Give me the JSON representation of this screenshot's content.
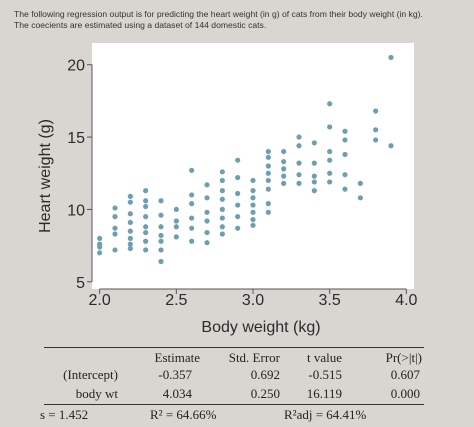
{
  "intro": {
    "line1": "The following regression output is for predicting the heart weight (in g) of cats from their body weight (in kg).",
    "line2": "The coecients are estimated using a dataset of 144 domestic cats."
  },
  "colors": {
    "point": "#6e9fb0",
    "axis": "#555555",
    "text": "#2b2b2b"
  },
  "chart_data": {
    "type": "scatter",
    "xlabel": "Body weight (kg)",
    "ylabel": "Heart weight (g)",
    "xlim": [
      1.95,
      4.05
    ],
    "ylim": [
      4.5,
      21.5
    ],
    "xticks": [
      2.0,
      2.5,
      3.0,
      3.5,
      4.0
    ],
    "xtick_labels": [
      "2.0",
      "2.5",
      "3.0",
      "3.5",
      "4.0"
    ],
    "yticks": [
      5,
      10,
      15,
      20
    ],
    "ytick_labels": [
      "5",
      "10",
      "15",
      "20"
    ],
    "grid": false,
    "points": [
      [
        2.0,
        7.0
      ],
      [
        2.0,
        7.4
      ],
      [
        2.0,
        7.6
      ],
      [
        2.0,
        8.0
      ],
      [
        2.1,
        7.2
      ],
      [
        2.1,
        8.3
      ],
      [
        2.1,
        8.7
      ],
      [
        2.1,
        9.5
      ],
      [
        2.1,
        10.1
      ],
      [
        2.2,
        7.3
      ],
      [
        2.2,
        7.6
      ],
      [
        2.2,
        8.0
      ],
      [
        2.2,
        8.5
      ],
      [
        2.2,
        9.1
      ],
      [
        2.2,
        9.7
      ],
      [
        2.2,
        10.5
      ],
      [
        2.2,
        10.9
      ],
      [
        2.3,
        7.2
      ],
      [
        2.3,
        7.8
      ],
      [
        2.3,
        8.4
      ],
      [
        2.3,
        8.8
      ],
      [
        2.3,
        9.5
      ],
      [
        2.3,
        10.2
      ],
      [
        2.3,
        10.6
      ],
      [
        2.3,
        11.3
      ],
      [
        2.4,
        6.4
      ],
      [
        2.4,
        7.2
      ],
      [
        2.4,
        7.8
      ],
      [
        2.4,
        8.2
      ],
      [
        2.4,
        8.8
      ],
      [
        2.4,
        9.6
      ],
      [
        2.4,
        10.6
      ],
      [
        2.5,
        8.1
      ],
      [
        2.5,
        8.8
      ],
      [
        2.5,
        9.2
      ],
      [
        2.5,
        10.0
      ],
      [
        2.6,
        7.8
      ],
      [
        2.6,
        8.7
      ],
      [
        2.6,
        9.4
      ],
      [
        2.6,
        10.4
      ],
      [
        2.6,
        11.0
      ],
      [
        2.6,
        12.7
      ],
      [
        2.7,
        7.7
      ],
      [
        2.7,
        8.4
      ],
      [
        2.7,
        9.2
      ],
      [
        2.7,
        9.8
      ],
      [
        2.7,
        10.8
      ],
      [
        2.7,
        11.7
      ],
      [
        2.8,
        8.3
      ],
      [
        2.8,
        8.8
      ],
      [
        2.8,
        9.4
      ],
      [
        2.8,
        10.0
      ],
      [
        2.8,
        10.7
      ],
      [
        2.8,
        11.3
      ],
      [
        2.8,
        12.0
      ],
      [
        2.8,
        12.6
      ],
      [
        2.9,
        8.7
      ],
      [
        2.9,
        9.5
      ],
      [
        2.9,
        10.3
      ],
      [
        2.9,
        11.1
      ],
      [
        2.9,
        12.2
      ],
      [
        2.9,
        13.4
      ],
      [
        3.0,
        8.9
      ],
      [
        3.0,
        9.3
      ],
      [
        3.0,
        9.8
      ],
      [
        3.0,
        10.3
      ],
      [
        3.0,
        10.8
      ],
      [
        3.0,
        11.3
      ],
      [
        3.0,
        12.0
      ],
      [
        3.1,
        9.8
      ],
      [
        3.1,
        10.4
      ],
      [
        3.1,
        11.4
      ],
      [
        3.1,
        12.0
      ],
      [
        3.1,
        12.5
      ],
      [
        3.1,
        13.0
      ],
      [
        3.1,
        13.6
      ],
      [
        3.1,
        14.0
      ],
      [
        3.2,
        11.8
      ],
      [
        3.2,
        12.3
      ],
      [
        3.2,
        12.8
      ],
      [
        3.2,
        13.3
      ],
      [
        3.2,
        14.0
      ],
      [
        3.3,
        11.8
      ],
      [
        3.3,
        12.4
      ],
      [
        3.3,
        13.2
      ],
      [
        3.3,
        14.4
      ],
      [
        3.3,
        15.0
      ],
      [
        3.4,
        11.3
      ],
      [
        3.4,
        11.9
      ],
      [
        3.4,
        12.3
      ],
      [
        3.4,
        13.2
      ],
      [
        3.4,
        14.6
      ],
      [
        3.5,
        11.9
      ],
      [
        3.5,
        12.5
      ],
      [
        3.5,
        13.4
      ],
      [
        3.5,
        14.0
      ],
      [
        3.5,
        15.7
      ],
      [
        3.5,
        17.3
      ],
      [
        3.6,
        11.4
      ],
      [
        3.6,
        12.4
      ],
      [
        3.6,
        13.8
      ],
      [
        3.6,
        14.8
      ],
      [
        3.6,
        15.4
      ],
      [
        3.7,
        10.8
      ],
      [
        3.7,
        11.8
      ],
      [
        3.8,
        14.8
      ],
      [
        3.8,
        15.5
      ],
      [
        3.8,
        16.8
      ],
      [
        3.9,
        14.4
      ],
      [
        3.9,
        20.5
      ]
    ]
  },
  "regression_table": {
    "headers": [
      "Estimate",
      "Std. Error",
      "t value",
      "Pr(>|t|)"
    ],
    "rows": [
      {
        "term": "(Intercept)",
        "values": [
          "-0.357",
          "0.692",
          "-0.515",
          "0.607"
        ]
      },
      {
        "term": "body wt",
        "values": [
          "4.034",
          "0.250",
          "16.119",
          "0.000"
        ]
      }
    ],
    "footer": {
      "s": "s = 1.452",
      "r2": "R² = 64.66%",
      "r2_adj": "R²adj = 64.41%"
    }
  }
}
